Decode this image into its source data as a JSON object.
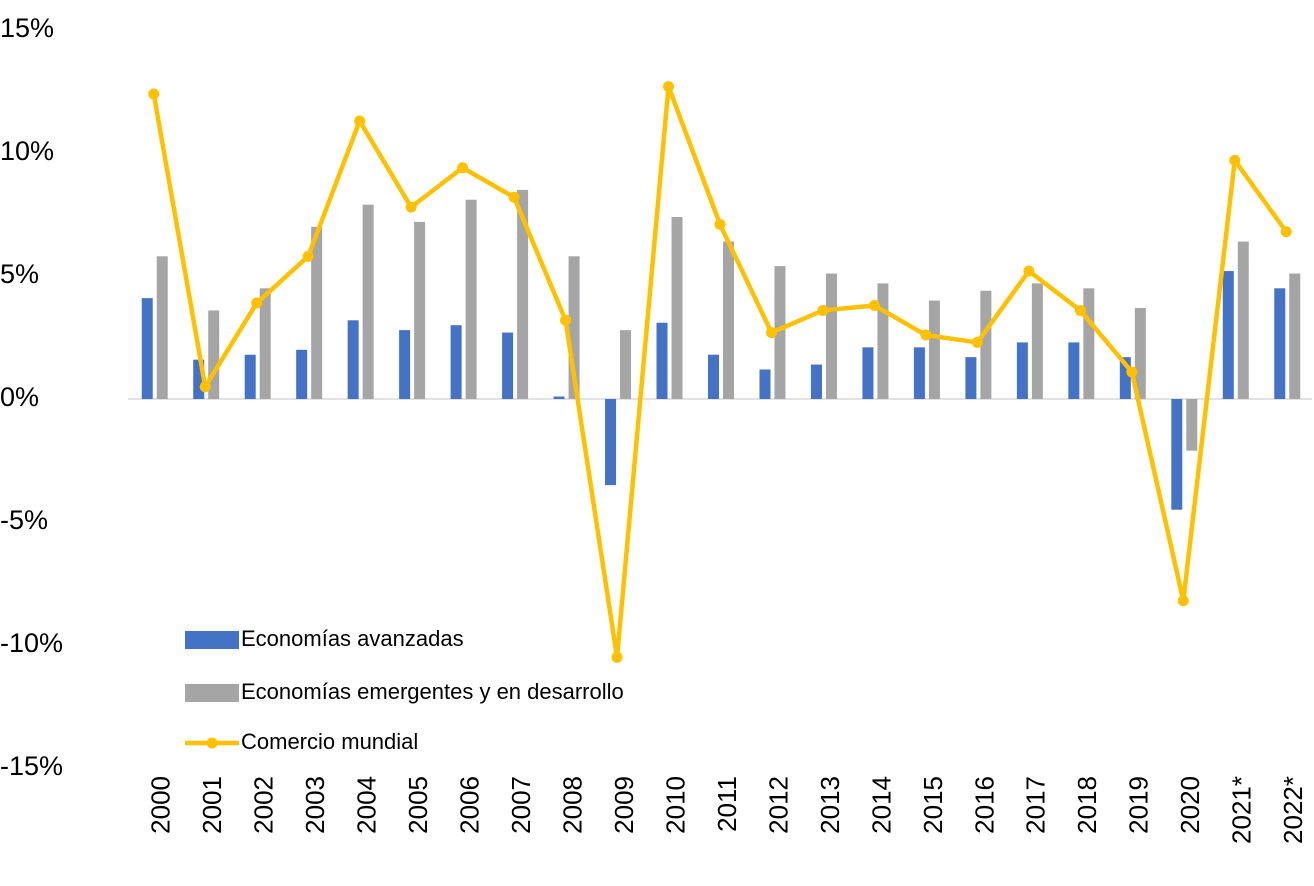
{
  "chart_data": {
    "type": "bar_line",
    "categories": [
      "2000",
      "2001",
      "2002",
      "2003",
      "2004",
      "2005",
      "2006",
      "2007",
      "2008",
      "2009",
      "2010",
      "2011",
      "2012",
      "2013",
      "2014",
      "2015",
      "2016",
      "2017",
      "2018",
      "2019",
      "2020",
      "2021*",
      "2022*"
    ],
    "series": [
      {
        "name": "Economías avanzadas",
        "type": "bar",
        "color": "#4472c4",
        "values": [
          4.1,
          1.6,
          1.8,
          2.0,
          3.2,
          2.8,
          3.0,
          2.7,
          0.1,
          -3.5,
          3.1,
          1.8,
          1.2,
          1.4,
          2.1,
          2.1,
          1.7,
          2.3,
          2.3,
          1.7,
          -4.5,
          5.2,
          4.5
        ]
      },
      {
        "name": "Economías emergentes y en desarrollo",
        "type": "bar",
        "color": "#a5a5a5",
        "values": [
          5.8,
          3.6,
          4.5,
          7.0,
          7.9,
          7.2,
          8.1,
          8.5,
          5.8,
          2.8,
          7.4,
          6.4,
          5.4,
          5.1,
          4.7,
          4.0,
          4.4,
          4.7,
          4.5,
          3.7,
          -2.1,
          6.4,
          5.1
        ]
      },
      {
        "name": "Comercio mundial",
        "type": "line",
        "color": "#ffc000",
        "values": [
          12.4,
          0.5,
          3.9,
          5.8,
          11.3,
          7.8,
          9.4,
          8.2,
          3.2,
          -10.5,
          12.7,
          7.1,
          2.7,
          3.6,
          3.8,
          2.6,
          2.3,
          5.2,
          3.6,
          1.1,
          -8.2,
          9.7,
          6.8
        ]
      }
    ],
    "ylim": [
      -15,
      15
    ],
    "yticks": [
      {
        "value": -15,
        "label": "-15%"
      },
      {
        "value": -10,
        "label": "-10%"
      },
      {
        "value": -5,
        "label": "-5%"
      },
      {
        "value": 0,
        "label": "0%"
      },
      {
        "value": 5,
        "label": "5%"
      },
      {
        "value": 10,
        "label": "10%"
      },
      {
        "value": 15,
        "label": "15%"
      }
    ],
    "legend": "lower-left"
  }
}
